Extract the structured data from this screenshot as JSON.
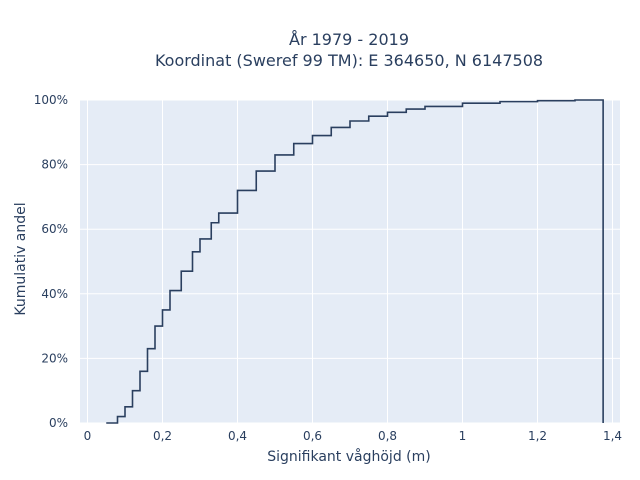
{
  "chart_data": {
    "type": "line",
    "line_shape": "step",
    "title": "År 1979 - 2019",
    "subtitle": "Koordinat (Sweref 99 TM): E 364650, N 6147508",
    "xlabel": "Signifikant våghöjd (m)",
    "ylabel": "Kumulativ andel",
    "xlim": [
      -0.02,
      1.42
    ],
    "ylim": [
      0,
      1
    ],
    "x_ticks": [
      0,
      0.2,
      0.4,
      0.6,
      0.8,
      1,
      1.2,
      1.4
    ],
    "x_tick_labels": [
      "0",
      "0,2",
      "0,4",
      "0,6",
      "0,8",
      "1",
      "1,2",
      "1,4"
    ],
    "y_ticks": [
      0,
      0.2,
      0.4,
      0.6,
      0.8,
      1
    ],
    "y_tick_labels": [
      "0%",
      "20%",
      "40%",
      "60%",
      "80%",
      "100%"
    ],
    "grid": true,
    "colors": {
      "plot_bg": "#e5ecf6",
      "grid": "#ffffff",
      "line": "#2a3f5f",
      "text": "#2a3f5f"
    },
    "series": [
      {
        "x": [
          0.05,
          0.08,
          0.1,
          0.12,
          0.14,
          0.16,
          0.18,
          0.2,
          0.22,
          0.25,
          0.28,
          0.3,
          0.33,
          0.35,
          0.4,
          0.45,
          0.5,
          0.55,
          0.6,
          0.65,
          0.7,
          0.75,
          0.8,
          0.85,
          0.9,
          1.0,
          1.1,
          1.2,
          1.3,
          1.375
        ],
        "y": [
          0,
          0.02,
          0.05,
          0.1,
          0.16,
          0.23,
          0.3,
          0.35,
          0.41,
          0.47,
          0.53,
          0.57,
          0.62,
          0.65,
          0.72,
          0.78,
          0.83,
          0.865,
          0.89,
          0.915,
          0.935,
          0.95,
          0.962,
          0.972,
          0.98,
          0.99,
          0.995,
          0.998,
          1.0,
          1.0
        ]
      }
    ]
  }
}
